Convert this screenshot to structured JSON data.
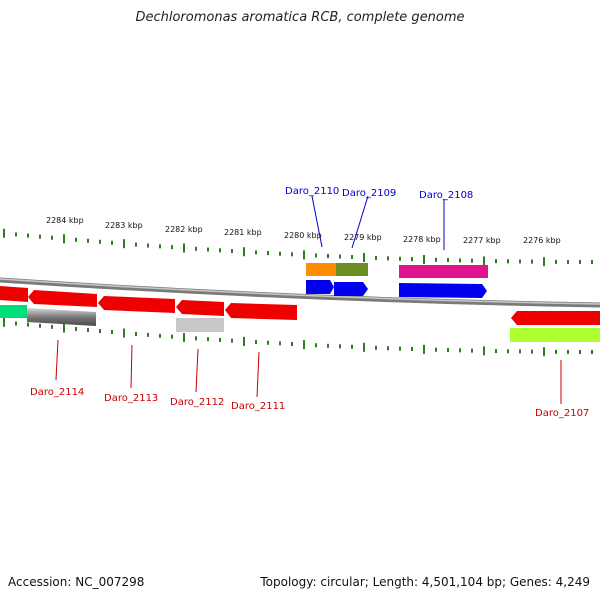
{
  "title": "Dechloromonas aromatica RCB, complete genome",
  "footer": {
    "accession": "Accession: NC_007298",
    "summary": "Topology: circular; Length: 4,501,104 bp; Genes: 4,249"
  },
  "scale_labels": [
    "2284 kbp",
    "2283 kbp",
    "2282 kbp",
    "2281 kbp",
    "2280 kbp",
    "2279 kbp",
    "2278 kbp",
    "2277 kbp",
    "2276 kbp"
  ],
  "genes_top": [
    {
      "label": "Daro_2110",
      "color": "#0000cc"
    },
    {
      "label": "Daro_2109",
      "color": "#0000cc"
    },
    {
      "label": "Daro_2108",
      "color": "#0000cc"
    }
  ],
  "genes_bottom": [
    {
      "label": "Daro_2114",
      "color": "#cc0000"
    },
    {
      "label": "Daro_2113",
      "color": "#cc0000"
    },
    {
      "label": "Daro_2112",
      "color": "#cc0000"
    },
    {
      "label": "Daro_2111",
      "color": "#cc0000"
    },
    {
      "label": "Daro_2107",
      "color": "#cc0000"
    }
  ],
  "colors": {
    "tick": "#2e7d1f",
    "backbone": "#8a8a8a",
    "forward_strand": "#0000ee",
    "reverse_strand": "#ee0000",
    "orange": "#ff8c00",
    "olive": "#6b8e23",
    "magenta": "#e0148c",
    "gray": "#666666",
    "light_gray": "#c8c8c8",
    "green": "#00e07a",
    "lime": "#adff2f"
  }
}
